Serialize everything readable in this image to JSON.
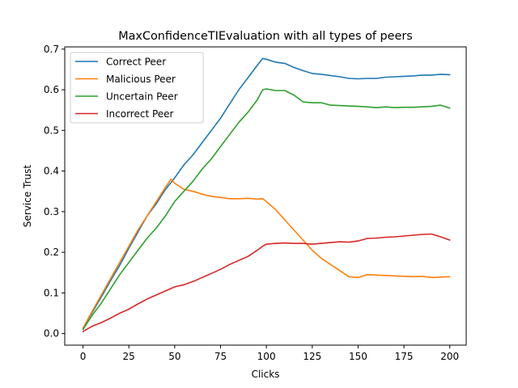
{
  "chart_data": {
    "type": "line",
    "title": "MaxConfidenceTIEvaluation with all types of peers",
    "xlabel": "Clicks",
    "ylabel": "Service Trust",
    "xlim": [
      -9.95,
      208.95
    ],
    "ylim": [
      -0.0285,
      0.7055
    ],
    "xticks": [
      0,
      25,
      50,
      75,
      100,
      125,
      150,
      175,
      200
    ],
    "yticks": [
      0.0,
      0.1,
      0.2,
      0.3,
      0.4,
      0.5,
      0.6,
      0.7
    ],
    "xtick_labels": [
      "0",
      "25",
      "50",
      "75",
      "100",
      "125",
      "150",
      "175",
      "200"
    ],
    "ytick_labels": [
      "0.0",
      "0.1",
      "0.2",
      "0.3",
      "0.4",
      "0.5",
      "0.6",
      "0.7"
    ],
    "grid": false,
    "legend_position": "upper left",
    "series": [
      {
        "name": "Correct Peer",
        "color": "#1f77b4",
        "x": [
          0,
          5,
          10,
          15,
          20,
          25,
          30,
          35,
          40,
          45,
          50,
          55,
          60,
          65,
          70,
          75,
          80,
          85,
          90,
          95,
          98,
          100,
          105,
          110,
          115,
          120,
          125,
          130,
          135,
          140,
          145,
          150,
          155,
          160,
          165,
          170,
          175,
          180,
          185,
          190,
          195,
          200
        ],
        "y": [
          0.013,
          0.052,
          0.09,
          0.13,
          0.168,
          0.21,
          0.25,
          0.29,
          0.32,
          0.355,
          0.383,
          0.415,
          0.44,
          0.47,
          0.5,
          0.53,
          0.565,
          0.6,
          0.63,
          0.66,
          0.677,
          0.675,
          0.668,
          0.665,
          0.655,
          0.647,
          0.64,
          0.638,
          0.635,
          0.632,
          0.628,
          0.627,
          0.628,
          0.628,
          0.631,
          0.632,
          0.633,
          0.634,
          0.636,
          0.636,
          0.638,
          0.637
        ]
      },
      {
        "name": "Malicious Peer",
        "color": "#ff7f0e",
        "x": [
          0,
          5,
          10,
          15,
          20,
          25,
          30,
          35,
          40,
          45,
          48,
          50,
          55,
          60,
          65,
          70,
          75,
          80,
          85,
          90,
          95,
          98,
          100,
          105,
          110,
          115,
          120,
          125,
          130,
          135,
          140,
          145,
          150,
          155,
          160,
          165,
          170,
          175,
          180,
          185,
          190,
          195,
          200
        ],
        "y": [
          0.013,
          0.055,
          0.095,
          0.135,
          0.175,
          0.215,
          0.255,
          0.29,
          0.325,
          0.36,
          0.38,
          0.37,
          0.355,
          0.35,
          0.343,
          0.338,
          0.335,
          0.332,
          0.332,
          0.333,
          0.331,
          0.332,
          0.325,
          0.305,
          0.28,
          0.255,
          0.23,
          0.205,
          0.185,
          0.17,
          0.155,
          0.14,
          0.138,
          0.145,
          0.144,
          0.143,
          0.142,
          0.141,
          0.14,
          0.141,
          0.138,
          0.139,
          0.14
        ]
      },
      {
        "name": "Uncertain Peer",
        "color": "#2ca02c",
        "x": [
          0,
          5,
          10,
          15,
          20,
          25,
          30,
          35,
          40,
          45,
          50,
          55,
          60,
          65,
          70,
          75,
          80,
          85,
          90,
          95,
          98,
          100,
          105,
          110,
          115,
          120,
          125,
          130,
          135,
          140,
          145,
          150,
          155,
          160,
          165,
          170,
          175,
          180,
          185,
          190,
          195,
          200
        ],
        "y": [
          0.01,
          0.045,
          0.075,
          0.11,
          0.145,
          0.175,
          0.205,
          0.235,
          0.26,
          0.29,
          0.325,
          0.35,
          0.375,
          0.405,
          0.43,
          0.46,
          0.49,
          0.52,
          0.545,
          0.575,
          0.6,
          0.602,
          0.598,
          0.598,
          0.587,
          0.57,
          0.568,
          0.568,
          0.562,
          0.561,
          0.56,
          0.559,
          0.558,
          0.556,
          0.558,
          0.556,
          0.557,
          0.557,
          0.558,
          0.559,
          0.562,
          0.555
        ]
      },
      {
        "name": "Incorrect Peer",
        "color": "#d62728",
        "x": [
          0,
          5,
          10,
          15,
          20,
          25,
          30,
          35,
          40,
          45,
          50,
          55,
          60,
          65,
          70,
          75,
          80,
          85,
          90,
          95,
          98,
          100,
          105,
          110,
          115,
          120,
          125,
          130,
          135,
          140,
          145,
          150,
          155,
          160,
          165,
          170,
          175,
          180,
          185,
          190,
          195,
          200
        ],
        "y": [
          0.005,
          0.018,
          0.027,
          0.038,
          0.05,
          0.06,
          0.073,
          0.085,
          0.095,
          0.105,
          0.115,
          0.12,
          0.128,
          0.138,
          0.148,
          0.158,
          0.17,
          0.18,
          0.19,
          0.205,
          0.215,
          0.22,
          0.222,
          0.223,
          0.222,
          0.222,
          0.22,
          0.222,
          0.224,
          0.226,
          0.225,
          0.228,
          0.234,
          0.235,
          0.237,
          0.238,
          0.24,
          0.242,
          0.244,
          0.245,
          0.238,
          0.23
        ]
      }
    ]
  }
}
